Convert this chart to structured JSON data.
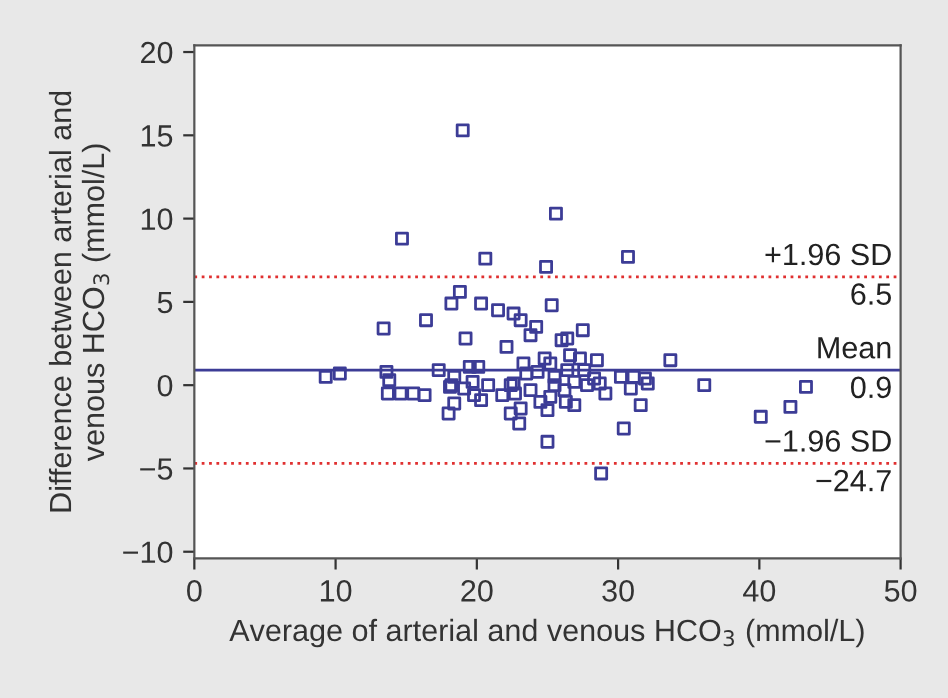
{
  "chart_data": {
    "type": "scatter",
    "xlabel": "Average of arterial and venous HCO$_{3}$ (mmol/L)",
    "ylabel": "Difference between arterial and\nvenous HCO$_{3}$ (mmol/L)",
    "xlim": [
      0,
      50
    ],
    "xticks": [
      0,
      10,
      20,
      30,
      40,
      50
    ],
    "ylim": [
      -10.4,
      20.4
    ],
    "yticks": [
      -10,
      -5,
      0,
      5,
      10,
      15,
      20
    ],
    "grid": false,
    "marker": "square",
    "series": [
      {
        "color": "#3c3c96",
        "x": [
          19.0,
          25.6,
          14.7,
          20.6,
          24.9,
          30.7,
          18.8,
          18.2,
          20.3,
          21.5,
          22.6,
          25.3,
          23.1,
          24.2,
          16.4,
          13.4,
          27.5,
          23.8,
          26.4,
          26.0,
          19.2,
          22.1,
          24.8,
          26.6,
          27.3,
          28.5,
          33.7,
          23.3,
          25.2,
          19.5,
          20.1,
          17.3,
          9.3,
          10.3,
          13.6,
          13.8,
          18.4,
          19.7,
          20.8,
          18.2,
          19.1,
          22.6,
          23.5,
          24.3,
          25.5,
          26.4,
          27.6,
          28.3,
          22.4,
          23.8,
          25.5,
          26.2,
          26.9,
          27.8,
          28.7,
          30.2,
          31.1,
          31.9,
          30.9,
          32.1,
          29.1,
          36.1,
          43.3,
          13.7,
          14.6,
          15.5,
          16.3,
          18.1,
          19.8,
          20.3,
          21.8,
          22.7,
          24.5,
          25.2,
          26.3,
          26.9,
          18.4,
          18.0,
          22.4,
          23.1,
          25.0,
          23.0,
          31.6,
          42.2,
          40.1,
          30.4,
          25.0,
          28.8
        ],
        "values": [
          15.3,
          10.3,
          8.8,
          7.6,
          7.1,
          7.7,
          5.6,
          4.9,
          4.9,
          4.5,
          4.3,
          4.8,
          3.9,
          3.5,
          3.9,
          3.4,
          3.3,
          3.0,
          2.8,
          2.7,
          2.8,
          2.3,
          1.6,
          1.8,
          1.6,
          1.5,
          1.5,
          1.3,
          1.3,
          1.1,
          1.1,
          0.9,
          0.5,
          0.7,
          0.8,
          0.3,
          0.5,
          0.2,
          0.0,
          0.0,
          -0.2,
          0.1,
          0.7,
          0.8,
          0.5,
          0.9,
          0.9,
          0.4,
          0.0,
          -0.3,
          0.0,
          -0.3,
          0.2,
          0.0,
          0.1,
          0.5,
          0.5,
          0.4,
          -0.2,
          0.1,
          -0.5,
          0.0,
          -0.1,
          -0.5,
          -0.5,
          -0.5,
          -0.6,
          -0.1,
          -0.6,
          -0.9,
          -0.6,
          -0.5,
          -1.0,
          -0.7,
          -1.0,
          -1.2,
          -1.1,
          -1.7,
          -1.7,
          -1.4,
          -1.5,
          -2.3,
          -1.2,
          -1.3,
          -1.9,
          -2.6,
          -3.4,
          -5.3
        ]
      }
    ],
    "ref_lines": [
      {
        "axis": "y",
        "value": 6.5,
        "label": "+1.96 SD\n6.5",
        "color": "#e03030",
        "line_style": "dotted"
      },
      {
        "axis": "y",
        "value": 0.9,
        "label": "Mean\n0.9",
        "color": "#3c3c96",
        "line_style": "solid"
      },
      {
        "axis": "y",
        "value": -4.7,
        "label": "−1.96 SD\n−24.7",
        "color": "#e03030",
        "line_style": "dotted"
      }
    ]
  }
}
